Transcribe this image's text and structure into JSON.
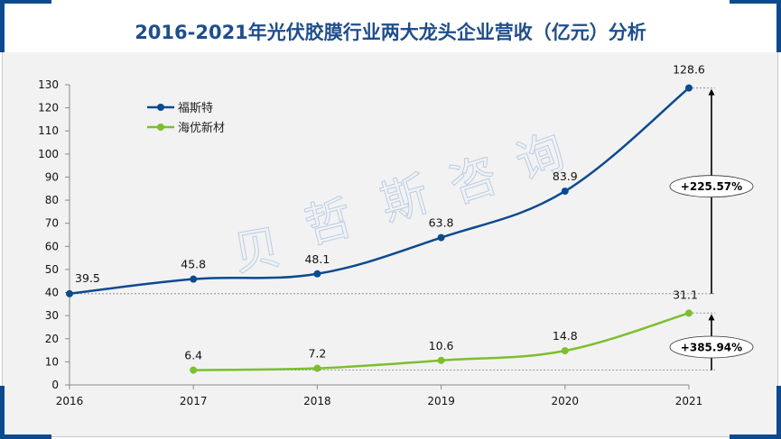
{
  "header": {
    "title": "2016-2021年光伏胶膜行业两大龙头企业营收（亿元）分析"
  },
  "watermark": {
    "chars": [
      "贝",
      "哲",
      "斯",
      "咨",
      "询"
    ]
  },
  "colors": {
    "title": "#1f4e8c",
    "frame_accent": "#0b4a8e",
    "series_1": "#0b4a8e",
    "series_2": "#7cbf2e",
    "background": "#f2f2f2"
  },
  "chart_data": {
    "type": "line",
    "title": "2016-2021年光伏胶膜行业两大龙头企业营收（亿元）分析",
    "xlabel": "",
    "ylabel": "",
    "x": [
      "2016",
      "2017",
      "2018",
      "2019",
      "2020",
      "2021"
    ],
    "ylim": [
      0,
      130
    ],
    "yticks": [
      "0",
      "10",
      "20",
      "30",
      "40",
      "50",
      "60",
      "70",
      "80",
      "90",
      "100",
      "110",
      "120",
      "130"
    ],
    "grid": false,
    "legend_position": "top-left",
    "smooth": true,
    "series": [
      {
        "name": "福斯特",
        "values": [
          39.5,
          45.8,
          48.1,
          63.8,
          83.9,
          128.6
        ],
        "labels": [
          "39.5",
          "45.8",
          "48.1",
          "63.8",
          "83.9",
          "128.6"
        ]
      },
      {
        "name": "海优新材",
        "values": [
          null,
          6.4,
          7.2,
          10.6,
          14.8,
          31.1
        ],
        "labels": [
          "",
          "6.4",
          "7.2",
          "10.6",
          "14.8",
          "31.1"
        ]
      }
    ],
    "annotations": [
      {
        "series": "福斯特",
        "from_value": 39.5,
        "to_value": 128.6,
        "text": "+225.57%"
      },
      {
        "series": "海优新材",
        "from_value": 6.4,
        "to_value": 31.1,
        "text": "+385.94%"
      }
    ]
  }
}
